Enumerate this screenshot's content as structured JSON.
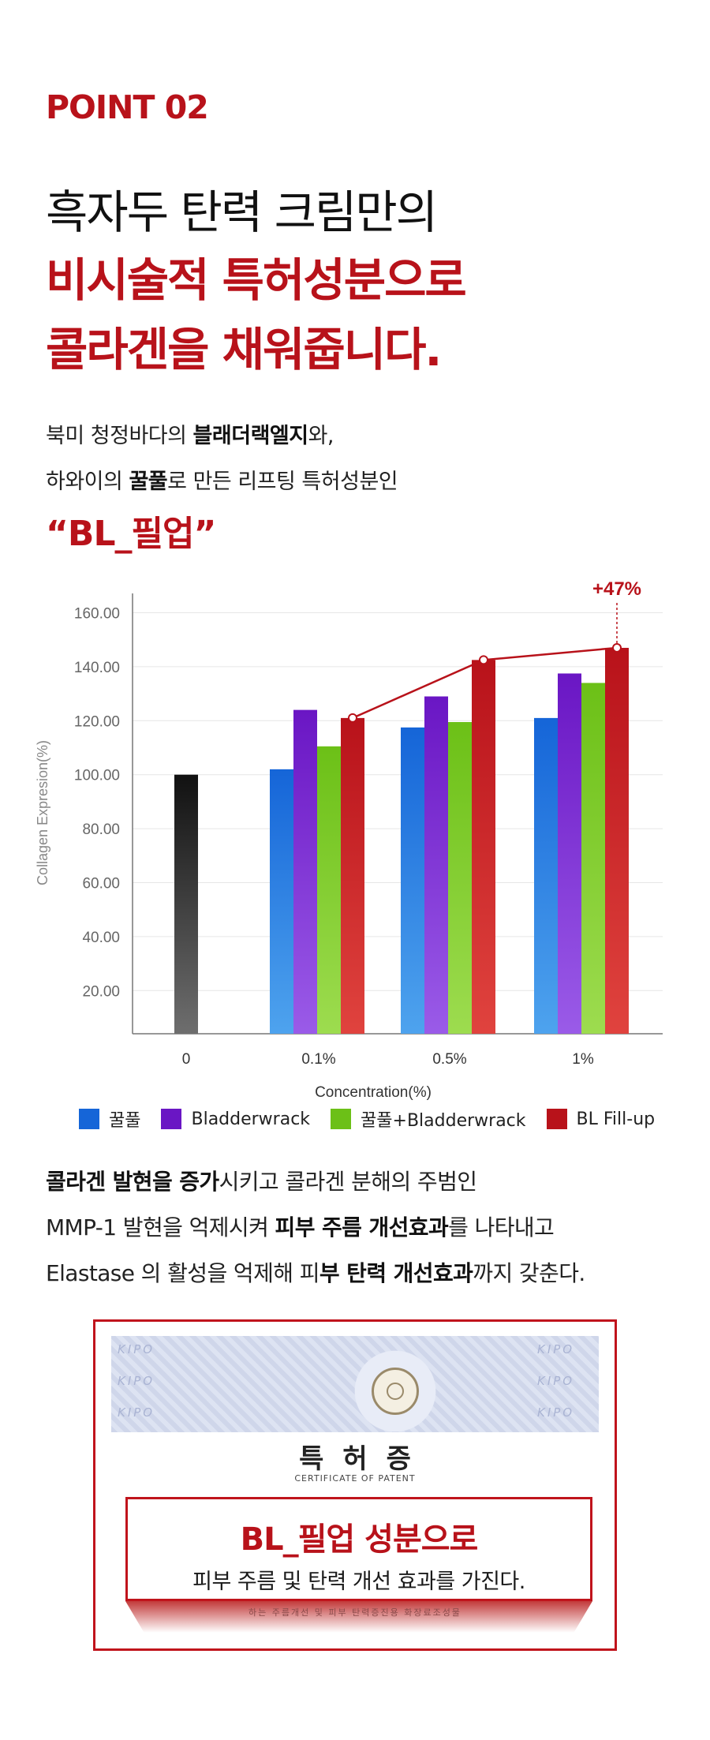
{
  "header": {
    "point": "POINT 02",
    "headline_1": "흑자두 탄력 크림만의",
    "headline_2": "비시술적 특허성분으로",
    "headline_3": "콜라겐을 채워줍니다."
  },
  "intro": {
    "line1_a": "북미 청정바다의 ",
    "line1_b": "블래더랙엘지",
    "line1_c": "와,",
    "line2_a": "하와이의 ",
    "line2_b": "꿀풀",
    "line2_c": "로 만든 리프팅 특허성분인",
    "product": "“BL_필업”"
  },
  "chart_data": {
    "type": "bar",
    "categories": [
      "0",
      "0.1%",
      "0.5%",
      "1%"
    ],
    "xlabel": "Concentration(%)",
    "ylabel": "Collagen Expresion(%)",
    "ylim": [
      4,
      166
    ],
    "yticks": [
      "20.00",
      "40.00",
      "60.00",
      "80.00",
      "100.00",
      "120.00",
      "140.00",
      "160.00"
    ],
    "control": {
      "category": "0",
      "value": 100
    },
    "series": [
      {
        "name": "꿀풀",
        "values": [
          null,
          102,
          117.5,
          121
        ],
        "color": "#1565d8"
      },
      {
        "name": "Bladderwrack",
        "values": [
          null,
          124,
          129,
          137.5
        ],
        "color": "#6a16c4"
      },
      {
        "name": "꿀풀+Bladderwrack",
        "values": [
          null,
          110.5,
          119.5,
          134
        ],
        "color": "#6cc017"
      },
      {
        "name": "BL Fill-up",
        "values": [
          null,
          121,
          142.5,
          147
        ],
        "color": "#b8121a"
      }
    ],
    "trend_series": "BL Fill-up",
    "annotation": "+47%"
  },
  "body": {
    "l1_a": "콜라겐 발현을 증가",
    "l1_b": "시키고 콜라겐 분해의 주범인",
    "l2_a": "MMP-1 발현을 억제시켜 ",
    "l2_b": "피부 주름 개선효과",
    "l2_c": "를 나타내고",
    "l3_a": "Elastase 의 활성을 억제해 피",
    "l3_b": "부 탄력 개선효과",
    "l3_c": "까지 갖춘다."
  },
  "certificate": {
    "title": "특허증",
    "subtitle": "CERTIFICATE OF PATENT",
    "watermark": "KIPO",
    "box_title": "BL_필업 성분으로",
    "box_desc": "피부 주름 및 탄력 개선 효과를 가진다.",
    "faint_text": "하는 주름개선 및 피부 탄력증진용 화장료조성물"
  },
  "colors": {
    "accent": "#b8121a",
    "control": "#111111"
  }
}
